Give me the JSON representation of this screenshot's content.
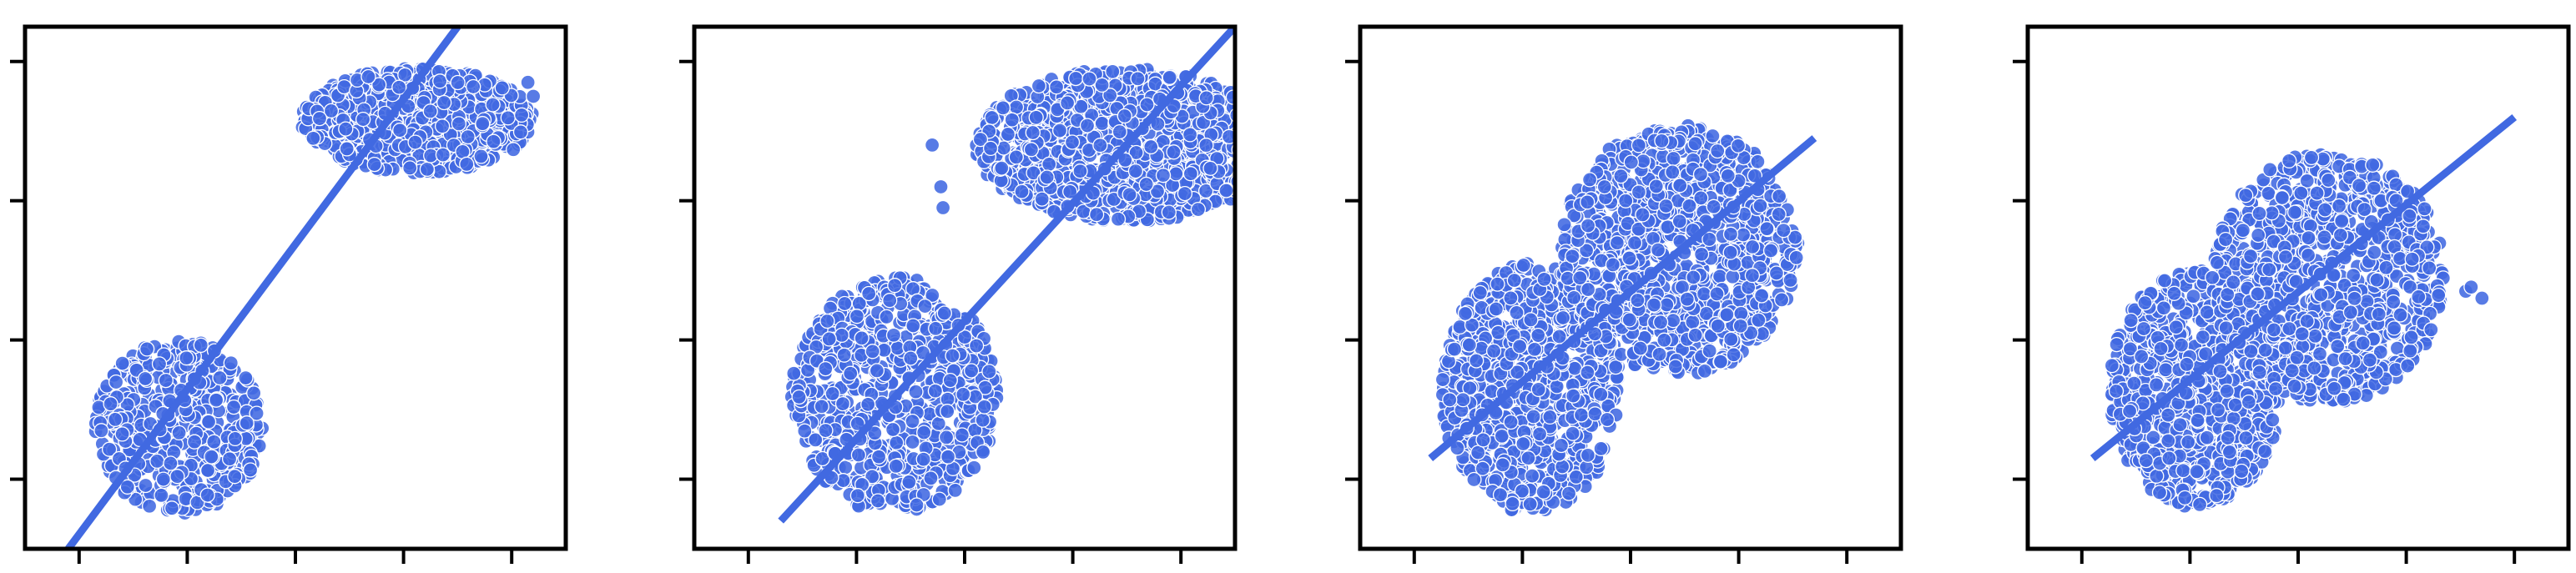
{
  "figure": {
    "colors": {
      "point_fill": "#4169E1",
      "point_edge": "#ffffff",
      "line": "#4169E1",
      "axes": "#000000"
    },
    "panel_count": 4,
    "tick_labels_visible": false
  },
  "chart_data": [
    {
      "type": "scatter",
      "title": "",
      "xlabel": "",
      "ylabel": "",
      "xlim": [
        -0.5,
        4.5
      ],
      "ylim": [
        -0.5,
        3.25
      ],
      "xticks": [
        0,
        1,
        2,
        3,
        4
      ],
      "yticks": [
        0,
        1,
        2,
        3
      ],
      "grid": false,
      "legend": "none",
      "clusters": [
        {
          "x_range": [
            0.15,
            1.7
          ],
          "y_range": [
            -0.25,
            1.0
          ],
          "n": 520
        },
        {
          "x_range": [
            2.05,
            4.2
          ],
          "y_range": [
            2.2,
            2.95
          ],
          "n": 760
        }
      ],
      "outliers": [
        {
          "x": 4.15,
          "y": 2.85
        },
        {
          "x": 4.2,
          "y": 2.75
        }
      ],
      "fit_line": [
        {
          "x": -0.1,
          "y": -0.5
        },
        {
          "x": 3.5,
          "y": 3.25
        }
      ]
    },
    {
      "type": "scatter",
      "title": "",
      "xlabel": "",
      "ylabel": "",
      "xlim": [
        -0.5,
        4.5
      ],
      "ylim": [
        -0.5,
        3.25
      ],
      "xticks": [
        0,
        1,
        2,
        3,
        4
      ],
      "yticks": [
        0,
        1,
        2,
        3
      ],
      "grid": false,
      "legend": "none",
      "clusters": [
        {
          "x_range": [
            0.4,
            2.3
          ],
          "y_range": [
            -0.25,
            1.45
          ],
          "n": 760
        },
        {
          "x_range": [
            2.1,
            4.9
          ],
          "y_range": [
            1.85,
            2.95
          ],
          "n": 1100
        }
      ],
      "outliers": [
        {
          "x": 1.7,
          "y": 2.4
        },
        {
          "x": 1.8,
          "y": 1.95
        },
        {
          "x": 1.78,
          "y": 2.1
        }
      ],
      "fit_line": [
        {
          "x": 0.3,
          "y": -0.3
        },
        {
          "x": 4.5,
          "y": 3.25
        }
      ]
    },
    {
      "type": "scatter",
      "title": "",
      "xlabel": "",
      "ylabel": "",
      "xlim": [
        -0.5,
        4.5
      ],
      "ylim": [
        -0.5,
        3.25
      ],
      "xticks": [
        0,
        1,
        2,
        3,
        4
      ],
      "yticks": [
        0,
        1,
        2,
        3
      ],
      "grid": false,
      "legend": "none",
      "clusters": [
        {
          "x_range": [
            0.25,
            1.9
          ],
          "y_range": [
            -0.25,
            1.55
          ],
          "n": 850
        },
        {
          "x_range": [
            1.35,
            3.55
          ],
          "y_range": [
            0.75,
            2.55
          ],
          "n": 1050
        }
      ],
      "outliers": [],
      "fit_line": [
        {
          "x": 0.15,
          "y": 0.15
        },
        {
          "x": 3.7,
          "y": 2.45
        }
      ]
    },
    {
      "type": "scatter",
      "title": "",
      "xlabel": "",
      "ylabel": "",
      "xlim": [
        -0.5,
        4.5
      ],
      "ylim": [
        -0.5,
        3.25
      ],
      "xticks": [
        0,
        1,
        2,
        3,
        4
      ],
      "yticks": [
        0,
        1,
        2,
        3
      ],
      "grid": false,
      "legend": "none",
      "clusters": [
        {
          "x_range": [
            0.25,
            1.85
          ],
          "y_range": [
            -0.2,
            1.5
          ],
          "n": 850
        },
        {
          "x_range": [
            1.2,
            3.35
          ],
          "y_range": [
            0.55,
            2.35
          ],
          "n": 1000
        }
      ],
      "outliers": [
        {
          "x": 3.55,
          "y": 1.35
        },
        {
          "x": 3.7,
          "y": 1.3
        },
        {
          "x": 3.6,
          "y": 1.38
        }
      ],
      "fit_line": [
        {
          "x": 0.1,
          "y": 0.15
        },
        {
          "x": 4.0,
          "y": 2.6
        }
      ]
    }
  ]
}
